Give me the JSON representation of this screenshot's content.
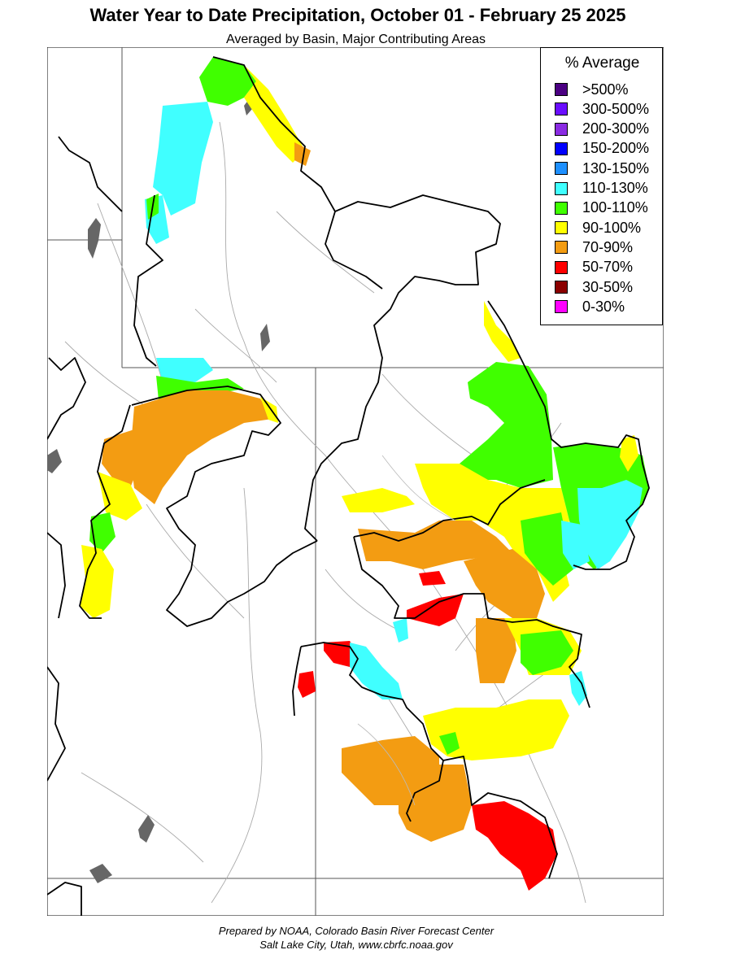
{
  "title": "Water Year to Date Precipitation, October 01  - February 25 2025",
  "subtitle": "Averaged by Basin, Major Contributing Areas",
  "legend": {
    "title": "% Average",
    "items": [
      {
        "label": ">500%",
        "color": "#4b0082"
      },
      {
        "label": "300-500%",
        "color": "#6a0dff"
      },
      {
        "label": "200-300%",
        "color": "#8a2be2"
      },
      {
        "label": "150-200%",
        "color": "#0000ff"
      },
      {
        "label": "130-150%",
        "color": "#1e90ff"
      },
      {
        "label": "110-130%",
        "color": "#40ffff"
      },
      {
        "label": "100-110%",
        "color": "#40ff00"
      },
      {
        "label": "90-100%",
        "color": "#ffff00"
      },
      {
        "label": "70-90%",
        "color": "#f39c12"
      },
      {
        "label": "50-70%",
        "color": "#ff0000"
      },
      {
        "label": "30-50%",
        "color": "#8b0000"
      },
      {
        "label": "0-30%",
        "color": "#ff00ff"
      }
    ]
  },
  "credits": {
    "line1": "Prepared by NOAA, Colorado Basin River Forecast Center",
    "line2": "Salt Lake City, Utah, www.cbrfc.noaa.gov"
  }
}
